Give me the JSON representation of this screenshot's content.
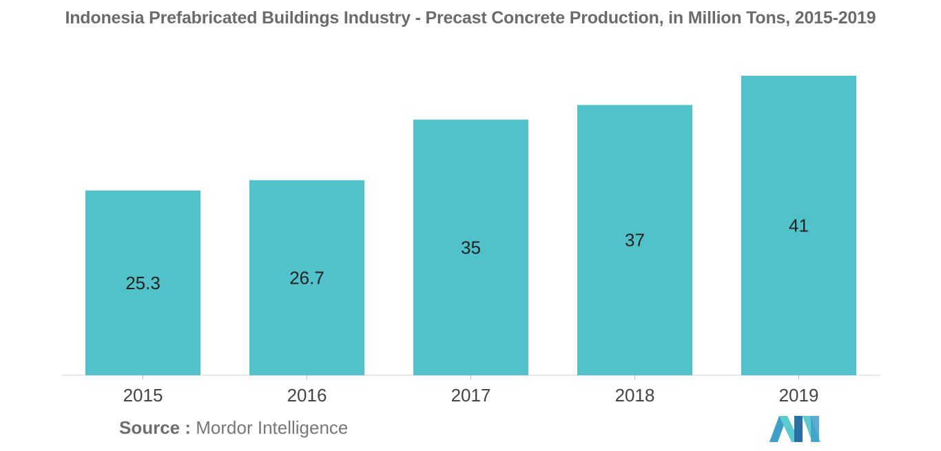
{
  "chart_data": {
    "type": "bar",
    "title": "Indonesia Prefabricated Buildings Industry - Precast Concrete Production, in Million Tons, 2015-2019",
    "categories": [
      "2015",
      "2016",
      "2017",
      "2018",
      "2019"
    ],
    "values": [
      25.3,
      26.7,
      35,
      37,
      41
    ],
    "data_labels": [
      "25.3",
      "26.7",
      "35",
      "37",
      "41"
    ],
    "xlabel": "",
    "ylabel": "",
    "ylim": [
      0,
      41
    ],
    "grid": false,
    "legend": "none",
    "bar_color": "#52c2ca"
  },
  "source": {
    "label": "Source :",
    "text": "Mordor Intelligence"
  },
  "logo": {
    "icon": "mordor-intelligence-logo-icon",
    "colors": [
      "#3f9fc7",
      "#5ccbd0",
      "#2b6fa8"
    ]
  }
}
